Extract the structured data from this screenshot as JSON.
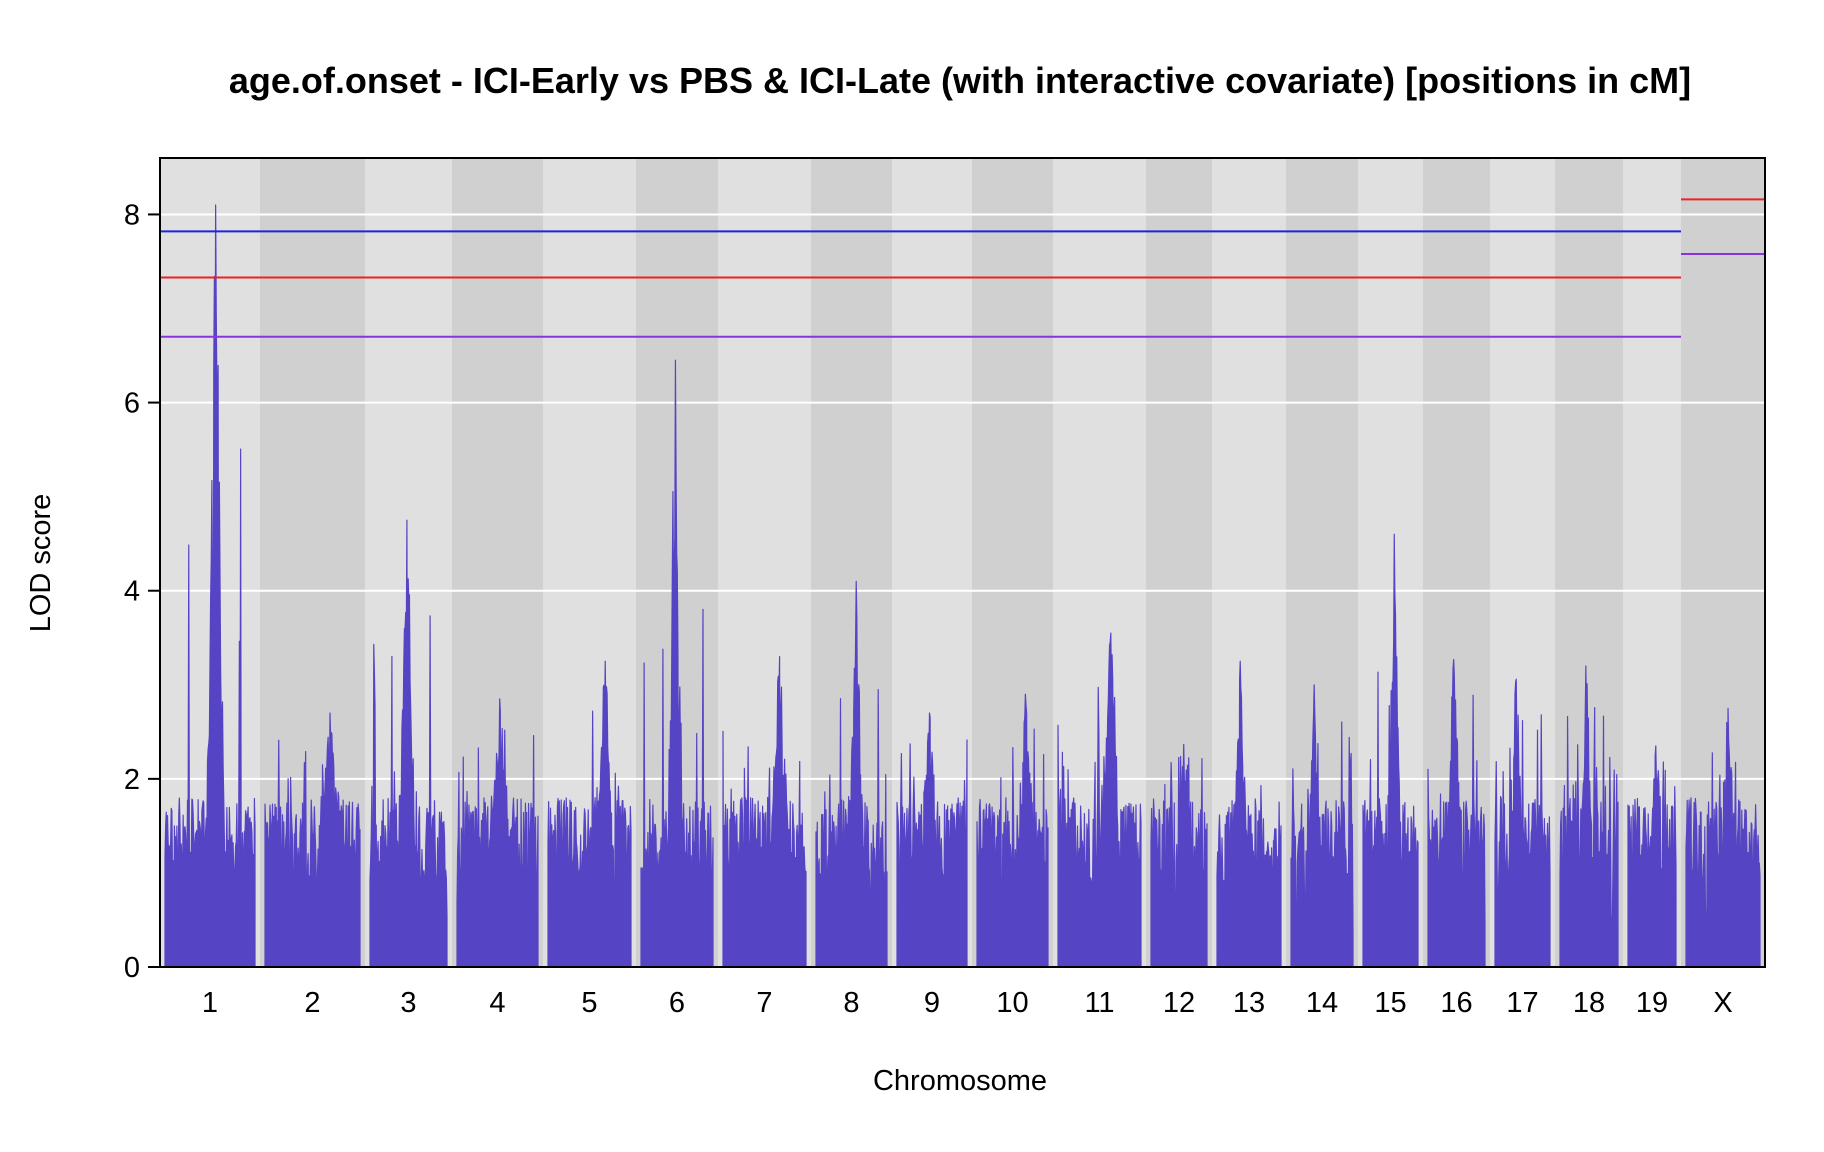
{
  "chart_data": {
    "type": "line",
    "title": "age.of.onset - ICI-Early vs PBS & ICI-Late (with interactive covariate) [positions in cM]",
    "xlabel": "Chromosome",
    "ylabel": "LOD score",
    "ylim": [
      0,
      8.6
    ],
    "yticks": [
      0,
      2,
      4,
      6,
      8
    ],
    "grid": true,
    "chromosomes": [
      "1",
      "2",
      "3",
      "4",
      "5",
      "6",
      "7",
      "8",
      "9",
      "10",
      "11",
      "12",
      "13",
      "14",
      "15",
      "16",
      "17",
      "18",
      "19",
      "X"
    ],
    "series": [
      {
        "peaks": [
          {
            "chr": "1",
            "lod": 8.1
          },
          {
            "chr": "2",
            "lod": 2.7
          },
          {
            "chr": "3",
            "lod": 4.75
          },
          {
            "chr": "4",
            "lod": 2.85
          },
          {
            "chr": "5",
            "lod": 3.25
          },
          {
            "chr": "6",
            "lod": 6.45
          },
          {
            "chr": "7",
            "lod": 3.3
          },
          {
            "chr": "8",
            "lod": 4.1
          },
          {
            "chr": "9",
            "lod": 2.7
          },
          {
            "chr": "10",
            "lod": 2.9
          },
          {
            "chr": "11",
            "lod": 3.55
          },
          {
            "chr": "12",
            "lod": 2.45
          },
          {
            "chr": "13",
            "lod": 3.25
          },
          {
            "chr": "14",
            "lod": 3.0
          },
          {
            "chr": "15",
            "lod": 4.6
          },
          {
            "chr": "16",
            "lod": 3.6
          },
          {
            "chr": "17",
            "lod": 3.2
          },
          {
            "chr": "18",
            "lod": 3.2
          },
          {
            "chr": "19",
            "lod": 2.35
          },
          {
            "chr": "X",
            "lod": 2.75
          }
        ]
      }
    ],
    "thresholds": {
      "autosome": [
        {
          "level": 7.82,
          "color": "#2222dd"
        },
        {
          "level": 7.33,
          "color": "#ee2222"
        },
        {
          "level": 6.7,
          "color": "#8833dd"
        }
      ],
      "x": [
        {
          "level": 8.6,
          "color": "#2222dd"
        },
        {
          "level": 8.16,
          "color": "#ee2222"
        },
        {
          "level": 7.58,
          "color": "#8833dd"
        }
      ]
    },
    "colors": {
      "curve": "#5544c4",
      "band_light": "#e0e0e0",
      "band_dark": "#d0d0d0",
      "grid": "#ffffff"
    }
  }
}
